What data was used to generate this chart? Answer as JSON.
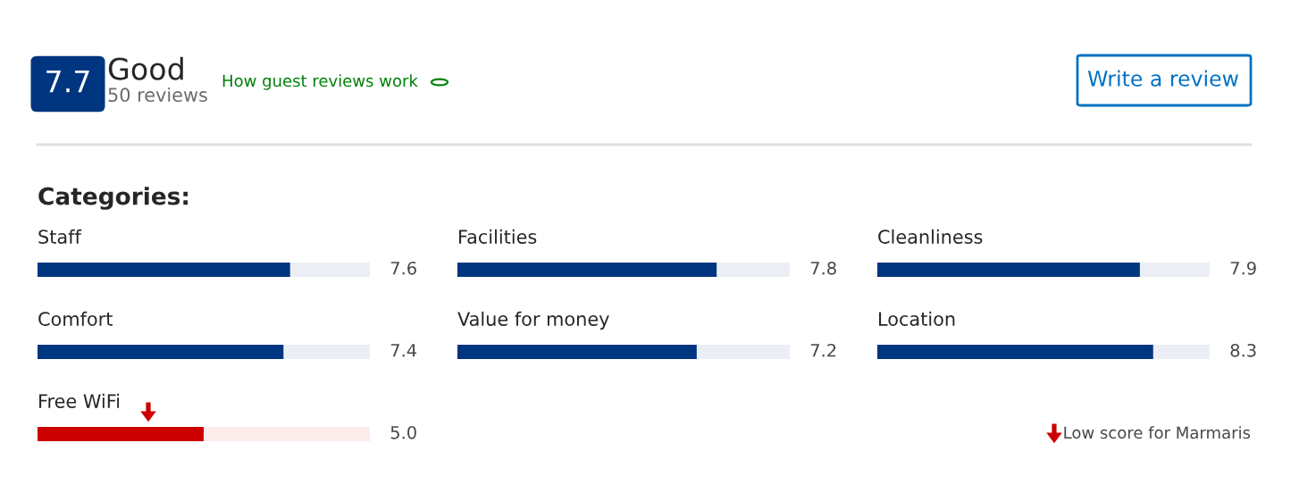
{
  "chart_data": [
    {
      "type": "other",
      "title": "Categories:",
      "annotations": [
        "7.7",
        "Good",
        "50 reviews",
        "How guest reviews work",
        "Write a review",
        "Low score for Marmaris"
      ]
    },
    {
      "type": "bar",
      "orientation": "horizontal",
      "categories": [
        "Staff",
        "Comfort",
        "Free WiFi"
      ],
      "values": [
        7.6,
        7.4,
        5.0
      ],
      "colors": [
        "#003580",
        "#003580",
        "#cc0000"
      ],
      "value_labels": [
        "7.6",
        "7.4",
        "5.0"
      ],
      "xlim": [
        0,
        10
      ],
      "tick_labels": false
    },
    {
      "type": "bar",
      "orientation": "horizontal",
      "categories": [
        "Facilities",
        "Value for money"
      ],
      "values": [
        7.8,
        7.2
      ],
      "colors": [
        "#003580",
        "#003580"
      ],
      "value_labels": [
        "7.8",
        "7.2"
      ],
      "xlim": [
        0,
        10
      ],
      "tick_labels": false
    },
    {
      "type": "bar",
      "orientation": "horizontal",
      "categories": [
        "Cleanliness",
        "Location"
      ],
      "values": [
        7.9,
        8.3
      ],
      "colors": [
        "#003580",
        "#003580"
      ],
      "value_labels": [
        "7.9",
        "8.3"
      ],
      "xlim": [
        0,
        10
      ],
      "tick_labels": false
    }
  ]
}
